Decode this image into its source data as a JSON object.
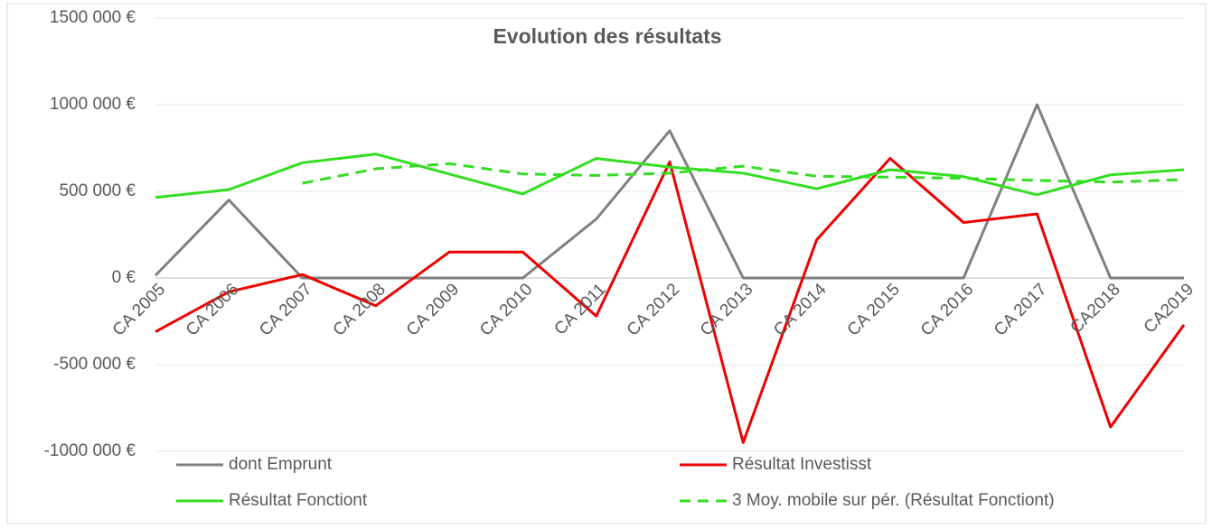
{
  "chart_data": {
    "type": "line",
    "title": "Evolution des résultats",
    "categories": [
      "CA 2005",
      "CA 2006",
      "CA 2007",
      "CA 2008",
      "CA 2009",
      "CA 2010",
      "CA 2011",
      "CA 2012",
      "CA 2013",
      "CA 2014",
      "CA 2015",
      "CA 2016",
      "CA 2017",
      "CA2018",
      "CA2019"
    ],
    "series": [
      {
        "name": "dont Emprunt",
        "color": "#808080",
        "values": [
          15000,
          450000,
          0,
          0,
          0,
          0,
          340000,
          850000,
          0,
          0,
          0,
          0,
          1000000,
          0,
          0
        ]
      },
      {
        "name": "Résultat Investisst",
        "color": "#ee0000",
        "values": [
          -310000,
          -80000,
          20000,
          -160000,
          150000,
          150000,
          -220000,
          670000,
          -950000,
          220000,
          690000,
          320000,
          370000,
          -860000,
          -270000
        ]
      },
      {
        "name": "Résultat Fonctiont",
        "color": "#33dd22",
        "values": [
          465000,
          510000,
          665000,
          715000,
          600000,
          485000,
          690000,
          640000,
          605000,
          515000,
          625000,
          585000,
          480000,
          595000,
          625000
        ]
      },
      {
        "name": "3 Moy. mobile sur pér. (Résultat Fonctiont)",
        "color": "#33dd22",
        "dashed": true,
        "values": [
          null,
          null,
          547000,
          630000,
          660000,
          600000,
          592000,
          605000,
          645000,
          587000,
          582000,
          575000,
          563000,
          553000,
          568000
        ]
      }
    ],
    "ylim": [
      -1000000,
      1500000
    ],
    "yticks": [
      {
        "value": -1000000,
        "label": "-1000 000 €"
      },
      {
        "value": -500000,
        "label": "-500 000 €"
      },
      {
        "value": 0,
        "label": "0 €"
      },
      {
        "value": 500000,
        "label": "500 000 €"
      },
      {
        "value": 1000000,
        "label": "1000 000 €"
      },
      {
        "value": 1500000,
        "label": "1500 000 €"
      }
    ],
    "grid": true
  }
}
